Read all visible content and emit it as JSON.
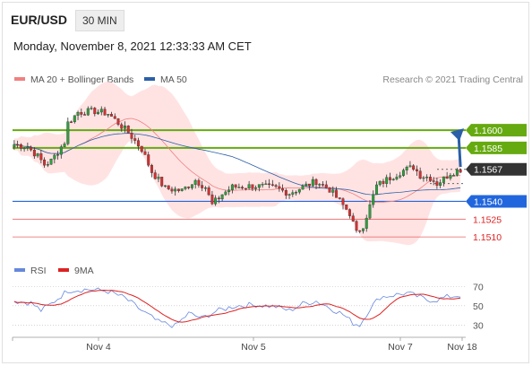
{
  "header": {
    "pair": "EUR/USD",
    "timeframe": "30 MIN",
    "datetime": "Monday, November 8, 2021 12:33:33 AM CET"
  },
  "legend": {
    "ma20_label": "MA 20 + Bollinger Bands",
    "ma50_label": "MA 50",
    "rsi_label": "RSI",
    "ma9_label": "9MA",
    "copyright": "Research © 2021 Trading Central"
  },
  "colors": {
    "support": "#2266dd",
    "resistance": "#66aa11",
    "pivot_red": "#dd2222",
    "last": "#333333",
    "ma20": "#f08080",
    "ma50": "#2b5fa8",
    "bollinger": "#ffdada",
    "arrow": "#2b5fa8",
    "rsi": "#6688dd",
    "rsi_ma": "#dd2222"
  },
  "chart_data": {
    "type": "candlestick",
    "price_axis": {
      "min": 1.1495,
      "max": 1.1625
    },
    "levels": [
      {
        "value": 1.16,
        "label": "1.1600",
        "kind": "resistance"
      },
      {
        "value": 1.1585,
        "label": "1.1585",
        "kind": "resistance"
      },
      {
        "value": 1.1567,
        "label": "1.1567",
        "kind": "last"
      },
      {
        "value": 1.154,
        "label": "1.1540",
        "kind": "support"
      },
      {
        "value": 1.1525,
        "label": "1.1525",
        "kind": "pivot"
      },
      {
        "value": 1.151,
        "label": "1.1510",
        "kind": "pivot"
      }
    ],
    "x_labels": [
      "Nov 4",
      "Nov 5",
      "Nov 7",
      "Nov 18"
    ],
    "rsi_axis": {
      "min": 20,
      "max": 75,
      "ticks": [
        "70",
        "50",
        "30"
      ]
    },
    "price_keypoints": [
      [
        0,
        1.1588
      ],
      [
        4,
        1.1586
      ],
      [
        7,
        1.1578
      ],
      [
        9,
        1.1571
      ],
      [
        11,
        1.1574
      ],
      [
        13,
        1.1582
      ],
      [
        15,
        1.159
      ],
      [
        16,
        1.1606
      ],
      [
        19,
        1.1615
      ],
      [
        24,
        1.1616
      ],
      [
        28,
        1.1614
      ],
      [
        31,
        1.1606
      ],
      [
        34,
        1.1598
      ],
      [
        38,
        1.1584
      ],
      [
        41,
        1.1565
      ],
      [
        45,
        1.1551
      ],
      [
        50,
        1.1549
      ],
      [
        54,
        1.1558
      ],
      [
        57,
        1.1552
      ],
      [
        59,
        1.1537
      ],
      [
        62,
        1.1546
      ],
      [
        65,
        1.1552
      ],
      [
        72,
        1.1553
      ],
      [
        78,
        1.1551
      ],
      [
        82,
        1.1547
      ],
      [
        86,
        1.1552
      ],
      [
        90,
        1.1557
      ],
      [
        94,
        1.155
      ],
      [
        97,
        1.154
      ],
      [
        100,
        1.153
      ],
      [
        102,
        1.1513
      ],
      [
        104,
        1.152
      ],
      [
        106,
        1.1536
      ],
      [
        108,
        1.1553
      ],
      [
        112,
        1.156
      ],
      [
        116,
        1.1566
      ],
      [
        119,
        1.1569
      ],
      [
        121,
        1.1562
      ],
      [
        124,
        1.156
      ],
      [
        126,
        1.1555
      ],
      [
        128,
        1.1559
      ],
      [
        130,
        1.1564
      ],
      [
        133,
        1.1567
      ]
    ],
    "rsi_keypoints": [
      [
        0,
        55
      ],
      [
        5,
        53
      ],
      [
        8,
        45
      ],
      [
        11,
        52
      ],
      [
        16,
        66
      ],
      [
        22,
        67
      ],
      [
        28,
        65
      ],
      [
        33,
        58
      ],
      [
        38,
        45
      ],
      [
        43,
        33
      ],
      [
        48,
        29
      ],
      [
        52,
        42
      ],
      [
        56,
        37
      ],
      [
        60,
        44
      ],
      [
        66,
        50
      ],
      [
        72,
        51
      ],
      [
        78,
        49
      ],
      [
        82,
        45
      ],
      [
        86,
        52
      ],
      [
        90,
        55
      ],
      [
        94,
        48
      ],
      [
        98,
        41
      ],
      [
        101,
        32
      ],
      [
        103,
        30
      ],
      [
        106,
        47
      ],
      [
        109,
        59
      ],
      [
        113,
        61
      ],
      [
        117,
        63
      ],
      [
        120,
        60
      ],
      [
        123,
        56
      ],
      [
        126,
        56
      ],
      [
        129,
        59
      ],
      [
        133,
        61
      ]
    ]
  }
}
